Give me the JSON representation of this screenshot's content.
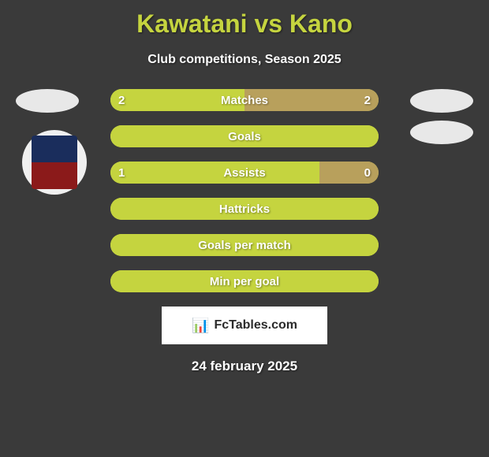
{
  "title": "Kawatani vs Kano",
  "subtitle": "Club competitions, Season 2025",
  "footer_brand": "FcTables.com",
  "footer_date": "24 february 2025",
  "colors": {
    "background": "#3a3a3a",
    "accent": "#c5d43f",
    "bar_right": "#b8a05c",
    "text_white": "#ffffff",
    "badge_bg": "#e8e8e8"
  },
  "stats": [
    {
      "label": "Matches",
      "left_value": "2",
      "right_value": "2",
      "left_pct": 50,
      "right_pct": 50,
      "show_values": true
    },
    {
      "label": "Goals",
      "left_value": "",
      "right_value": "",
      "left_pct": 100,
      "right_pct": 0,
      "show_values": false
    },
    {
      "label": "Assists",
      "left_value": "1",
      "right_value": "0",
      "left_pct": 78,
      "right_pct": 22,
      "show_values": true
    },
    {
      "label": "Hattricks",
      "left_value": "",
      "right_value": "",
      "left_pct": 100,
      "right_pct": 0,
      "show_values": false
    },
    {
      "label": "Goals per match",
      "left_value": "",
      "right_value": "",
      "left_pct": 100,
      "right_pct": 0,
      "show_values": false
    },
    {
      "label": "Min per goal",
      "left_value": "",
      "right_value": "",
      "left_pct": 100,
      "right_pct": 0,
      "show_values": false
    }
  ],
  "badges": {
    "left_top": 0,
    "right_top1": 0,
    "right_top2": 40
  }
}
